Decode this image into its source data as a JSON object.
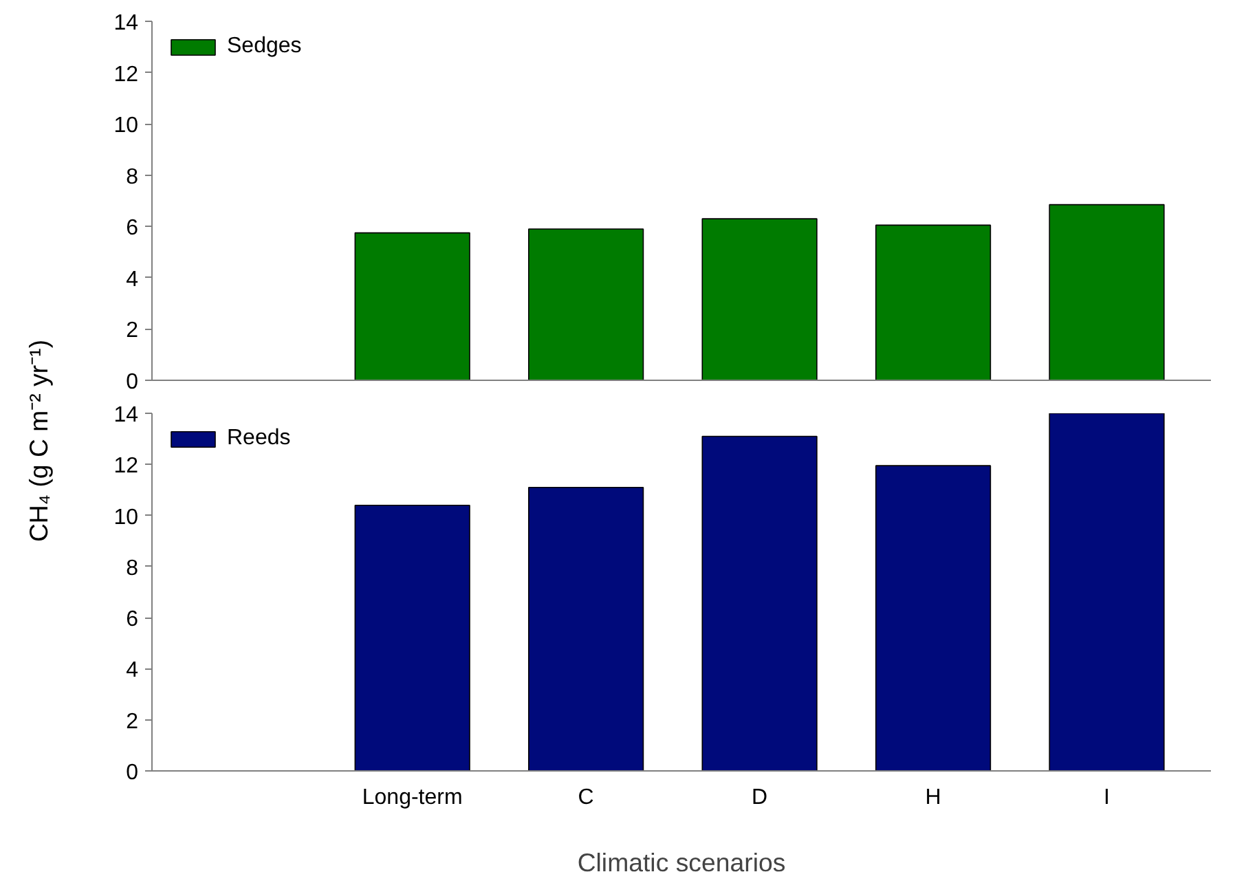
{
  "chart_data": [
    {
      "type": "bar",
      "ylabel": "CH₄ (g C m⁻² yr⁻¹)",
      "categories": [
        null,
        null,
        null,
        null,
        null
      ],
      "series": [
        {
          "name": "Sedges",
          "color": "#007b00",
          "values": [
            5.75,
            5.9,
            6.3,
            6.05,
            6.85
          ]
        }
      ],
      "ylim": [
        0,
        14
      ],
      "yticks": [
        0,
        2,
        4,
        6,
        8,
        10,
        12,
        14
      ],
      "legend": "top left",
      "tick_labels": "y"
    },
    {
      "type": "bar",
      "xlabel": "Climatic scenarios",
      "categories": [
        "Long-term",
        "C",
        "D",
        "H",
        "I"
      ],
      "series": [
        {
          "name": "Reeds",
          "color": "#000a7b",
          "values": [
            10.4,
            11.1,
            13.1,
            11.95,
            14.0
          ]
        }
      ],
      "ylim": [
        0,
        14
      ],
      "yticks": [
        0,
        2,
        4,
        6,
        8,
        10,
        12,
        14
      ],
      "legend": "top left"
    }
  ]
}
